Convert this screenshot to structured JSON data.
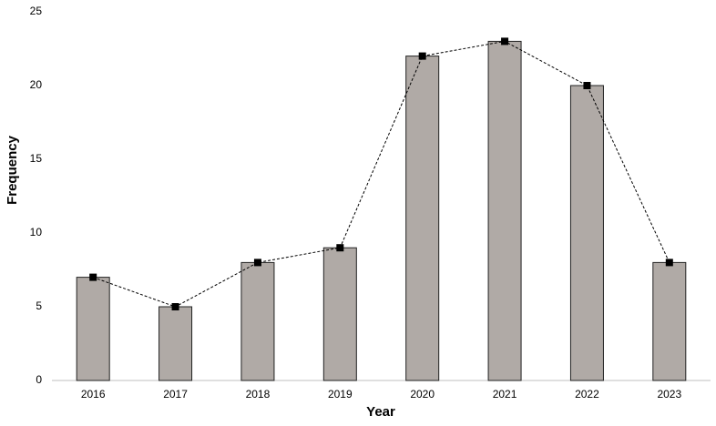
{
  "chart_data": {
    "type": "bar",
    "x_label": "Year",
    "y_label": "Frequency",
    "categories": [
      "2016",
      "2017",
      "2018",
      "2019",
      "2020",
      "2021",
      "2022",
      "2023"
    ],
    "values": [
      7,
      5,
      8,
      9,
      22,
      23,
      20,
      8
    ],
    "color": "#b0aaa6",
    "line_overlay": true,
    "line_color": "#000000",
    "ylim": [
      0,
      25
    ],
    "yticks": [
      0,
      5,
      10,
      15,
      20,
      25
    ],
    "grid": false
  }
}
